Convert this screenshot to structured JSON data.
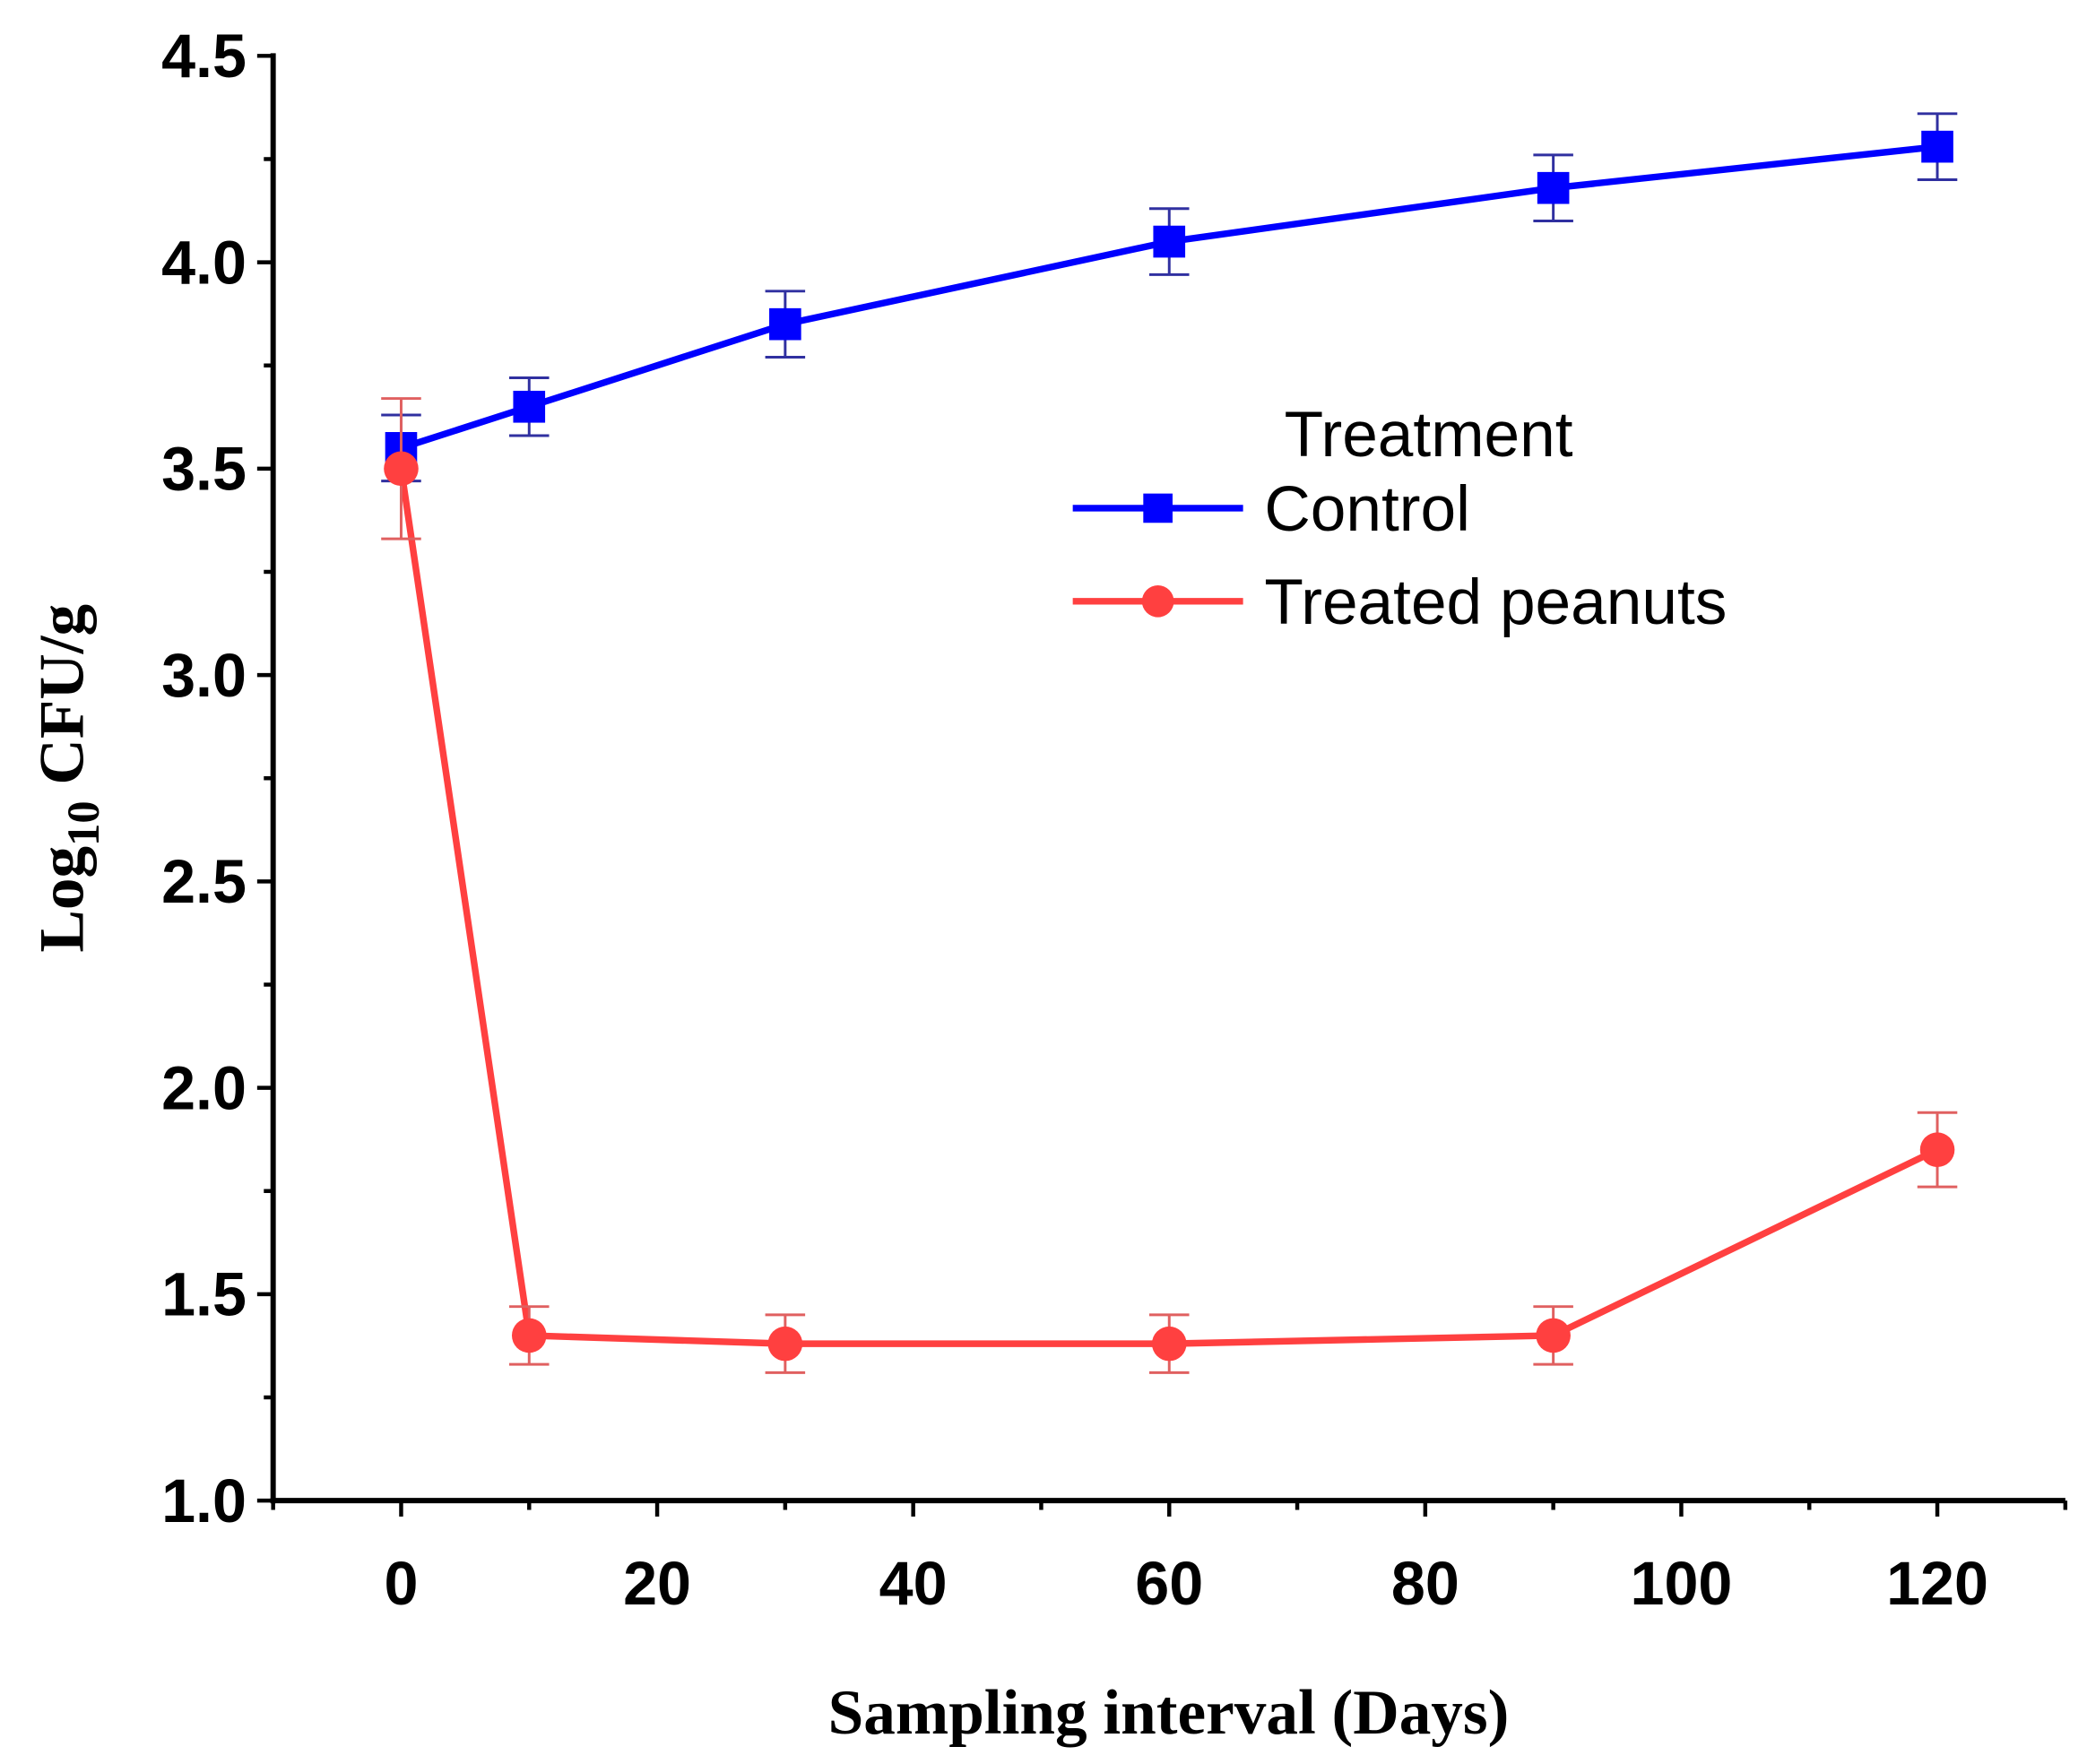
{
  "chart_data": {
    "type": "line",
    "title": "",
    "xlabel": "Sampling interval (Days)",
    "ylabel_main": "Log",
    "ylabel_sub": "10",
    "ylabel_rest": " CFU/g",
    "xlim": [
      -10,
      130
    ],
    "ylim": [
      1.0,
      4.5
    ],
    "xticks": [
      0,
      20,
      40,
      60,
      80,
      100,
      120
    ],
    "xtick_labels": [
      "0",
      "20",
      "40",
      "60",
      "80",
      "100",
      "120"
    ],
    "yticks": [
      1.0,
      1.5,
      2.0,
      2.5,
      3.0,
      3.5,
      4.0,
      4.5
    ],
    "ytick_labels": [
      "1.0",
      "1.5",
      "2.0",
      "2.5",
      "3.0",
      "3.5",
      "4.0",
      "4.5"
    ],
    "grid": false,
    "legend": {
      "title": "Treatment",
      "placement": "upper-center-right"
    },
    "x": [
      0,
      10,
      30,
      60,
      90,
      120
    ],
    "series": [
      {
        "name": "Control",
        "color": "#0000ff",
        "marker": "square",
        "values": [
          3.55,
          3.65,
          3.85,
          4.05,
          4.18,
          4.28
        ],
        "errors": [
          0.08,
          0.07,
          0.08,
          0.08,
          0.08,
          0.08
        ]
      },
      {
        "name": "Treated peanuts",
        "color": "#ff4040",
        "marker": "circle",
        "values": [
          3.5,
          1.4,
          1.38,
          1.38,
          1.4,
          1.85
        ],
        "errors": [
          0.17,
          0.07,
          0.07,
          0.07,
          0.07,
          0.09
        ]
      }
    ]
  }
}
